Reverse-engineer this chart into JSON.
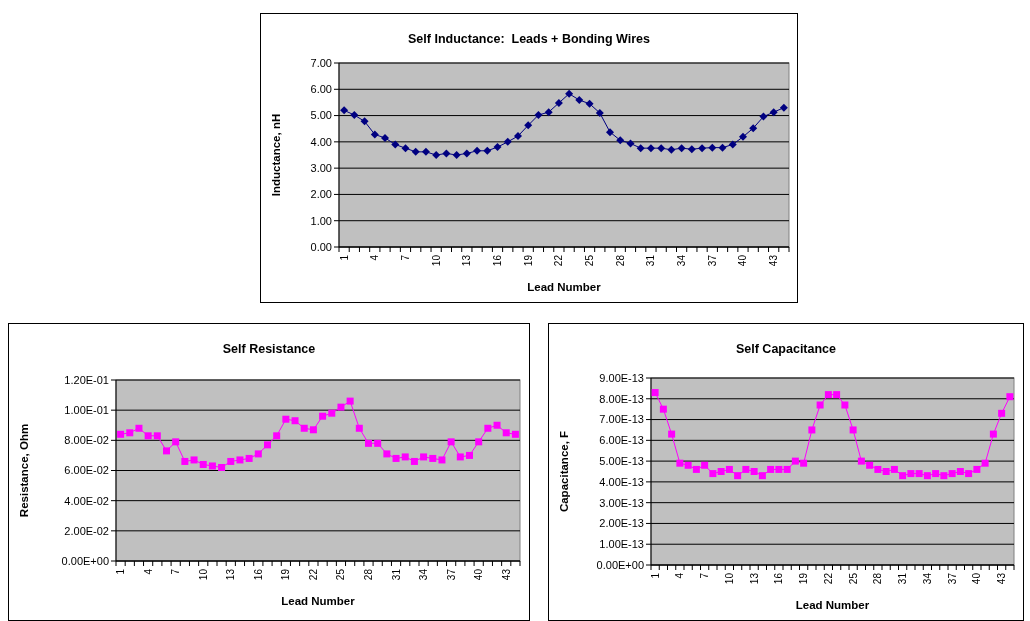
{
  "chart_data": [
    {
      "type": "line",
      "title": "Self Inductance:  Leads + Bonding Wires",
      "xlabel": "Lead Number",
      "ylabel": "Inductance, nH",
      "categories": [
        "1",
        null,
        null,
        "4",
        null,
        null,
        "7",
        null,
        null,
        "10",
        null,
        null,
        "13",
        null,
        null,
        "16",
        null,
        null,
        "19",
        null,
        null,
        "22",
        null,
        null,
        "25",
        null,
        null,
        "28",
        null,
        null,
        "31",
        null,
        null,
        "34",
        null,
        null,
        "37",
        null,
        null,
        "40",
        null,
        null,
        "43",
        null
      ],
      "series": [
        {
          "color": "#000080",
          "values": [
            5.2,
            5.02,
            4.78,
            4.28,
            4.15,
            3.9,
            3.76,
            3.62,
            3.62,
            3.5,
            3.56,
            3.5,
            3.56,
            3.66,
            3.66,
            3.8,
            4.0,
            4.22,
            4.63,
            5.02,
            5.13,
            5.48,
            5.83,
            5.59,
            5.45,
            5.1,
            4.37,
            4.06,
            3.94,
            3.76,
            3.76,
            3.76,
            3.7,
            3.76,
            3.72,
            3.76,
            3.78,
            3.78,
            3.9,
            4.19,
            4.52,
            4.96,
            5.13,
            5.3
          ]
        }
      ],
      "ylim": [
        0,
        7
      ],
      "yticks": [
        {
          "value": 0,
          "label": "0.00"
        },
        {
          "value": 1,
          "label": "1.00"
        },
        {
          "value": 2,
          "label": "2.00"
        },
        {
          "value": 3,
          "label": "3.00"
        },
        {
          "value": 4,
          "label": "4.00"
        },
        {
          "value": 5,
          "label": "5.00"
        },
        {
          "value": 6,
          "label": "6.00"
        },
        {
          "value": 7,
          "label": "7.00"
        }
      ],
      "grid": "y",
      "marker": "diamond",
      "line_style": "solid"
    },
    {
      "type": "line",
      "title": "Self Resistance",
      "xlabel": "Lead Number",
      "ylabel": "Resistance, Ohm",
      "categories": [
        "1",
        null,
        null,
        "4",
        null,
        null,
        "7",
        null,
        null,
        "10",
        null,
        null,
        "13",
        null,
        null,
        "16",
        null,
        null,
        "19",
        null,
        null,
        "22",
        null,
        null,
        "25",
        null,
        null,
        "28",
        null,
        null,
        "31",
        null,
        null,
        "34",
        null,
        null,
        "37",
        null,
        null,
        "40",
        null,
        null,
        "43",
        null
      ],
      "series": [
        {
          "color": "#ff00ff",
          "values": [
            0.084,
            0.085,
            0.088,
            0.083,
            0.083,
            0.073,
            0.079,
            0.066,
            0.067,
            0.064,
            0.063,
            0.062,
            0.066,
            0.067,
            0.068,
            0.071,
            0.077,
            0.083,
            0.094,
            0.093,
            0.088,
            0.087,
            0.096,
            0.098,
            0.102,
            0.106,
            0.088,
            0.078,
            0.078,
            0.071,
            0.068,
            0.069,
            0.066,
            0.069,
            0.068,
            0.067,
            0.079,
            0.069,
            0.07,
            0.079,
            0.088,
            0.09,
            0.085,
            0.084
          ]
        }
      ],
      "ylim": [
        0,
        0.12
      ],
      "yticks": [
        {
          "value": 0,
          "label": "0.00E+00"
        },
        {
          "value": 0.02,
          "label": "2.00E-02"
        },
        {
          "value": 0.04,
          "label": "4.00E-02"
        },
        {
          "value": 0.06,
          "label": "6.00E-02"
        },
        {
          "value": 0.08,
          "label": "8.00E-02"
        },
        {
          "value": 0.1,
          "label": "1.00E-01"
        },
        {
          "value": 0.12,
          "label": "1.20E-01"
        }
      ],
      "grid": "y",
      "marker": "square",
      "line_style": "solid"
    },
    {
      "type": "line",
      "title": "Self Capacitance",
      "xlabel": "Lead Number",
      "ylabel": "Capacitance, F",
      "categories": [
        "1",
        null,
        null,
        "4",
        null,
        null,
        "7",
        null,
        null,
        "10",
        null,
        null,
        "13",
        null,
        null,
        "16",
        null,
        null,
        "19",
        null,
        null,
        "22",
        null,
        null,
        "25",
        null,
        null,
        "28",
        null,
        null,
        "31",
        null,
        null,
        "34",
        null,
        null,
        "37",
        null,
        null,
        "40",
        null,
        null,
        "43",
        null
      ],
      "series": [
        {
          "color": "#ff00ff",
          "values": [
            8.3e-13,
            7.5e-13,
            6.3e-13,
            4.9e-13,
            4.8e-13,
            4.6e-13,
            4.8e-13,
            4.4e-13,
            4.5e-13,
            4.6e-13,
            4.3e-13,
            4.6e-13,
            4.5e-13,
            4.3e-13,
            4.6e-13,
            4.6e-13,
            4.6e-13,
            5e-13,
            4.9e-13,
            6.5e-13,
            7.7e-13,
            8.2e-13,
            8.2e-13,
            7.7e-13,
            6.5e-13,
            5e-13,
            4.8e-13,
            4.6e-13,
            4.5e-13,
            4.6e-13,
            4.3e-13,
            4.4e-13,
            4.4e-13,
            4.3e-13,
            4.4e-13,
            4.3e-13,
            4.4e-13,
            4.5e-13,
            4.4e-13,
            4.6e-13,
            4.9e-13,
            6.3e-13,
            7.3e-13,
            8.1e-13
          ]
        }
      ],
      "ylim": [
        0,
        9e-13
      ],
      "yticks": [
        {
          "value": 0,
          "label": "0.00E+00"
        },
        {
          "value": 1e-13,
          "label": "1.00E-13"
        },
        {
          "value": 2e-13,
          "label": "2.00E-13"
        },
        {
          "value": 3e-13,
          "label": "3.00E-13"
        },
        {
          "value": 4e-13,
          "label": "4.00E-13"
        },
        {
          "value": 5e-13,
          "label": "5.00E-13"
        },
        {
          "value": 6e-13,
          "label": "6.00E-13"
        },
        {
          "value": 7e-13,
          "label": "7.00E-13"
        },
        {
          "value": 8e-13,
          "label": "8.00E-13"
        },
        {
          "value": 9e-13,
          "label": "9.00E-13"
        }
      ],
      "grid": "y",
      "marker": "square",
      "line_style": "solid"
    }
  ]
}
